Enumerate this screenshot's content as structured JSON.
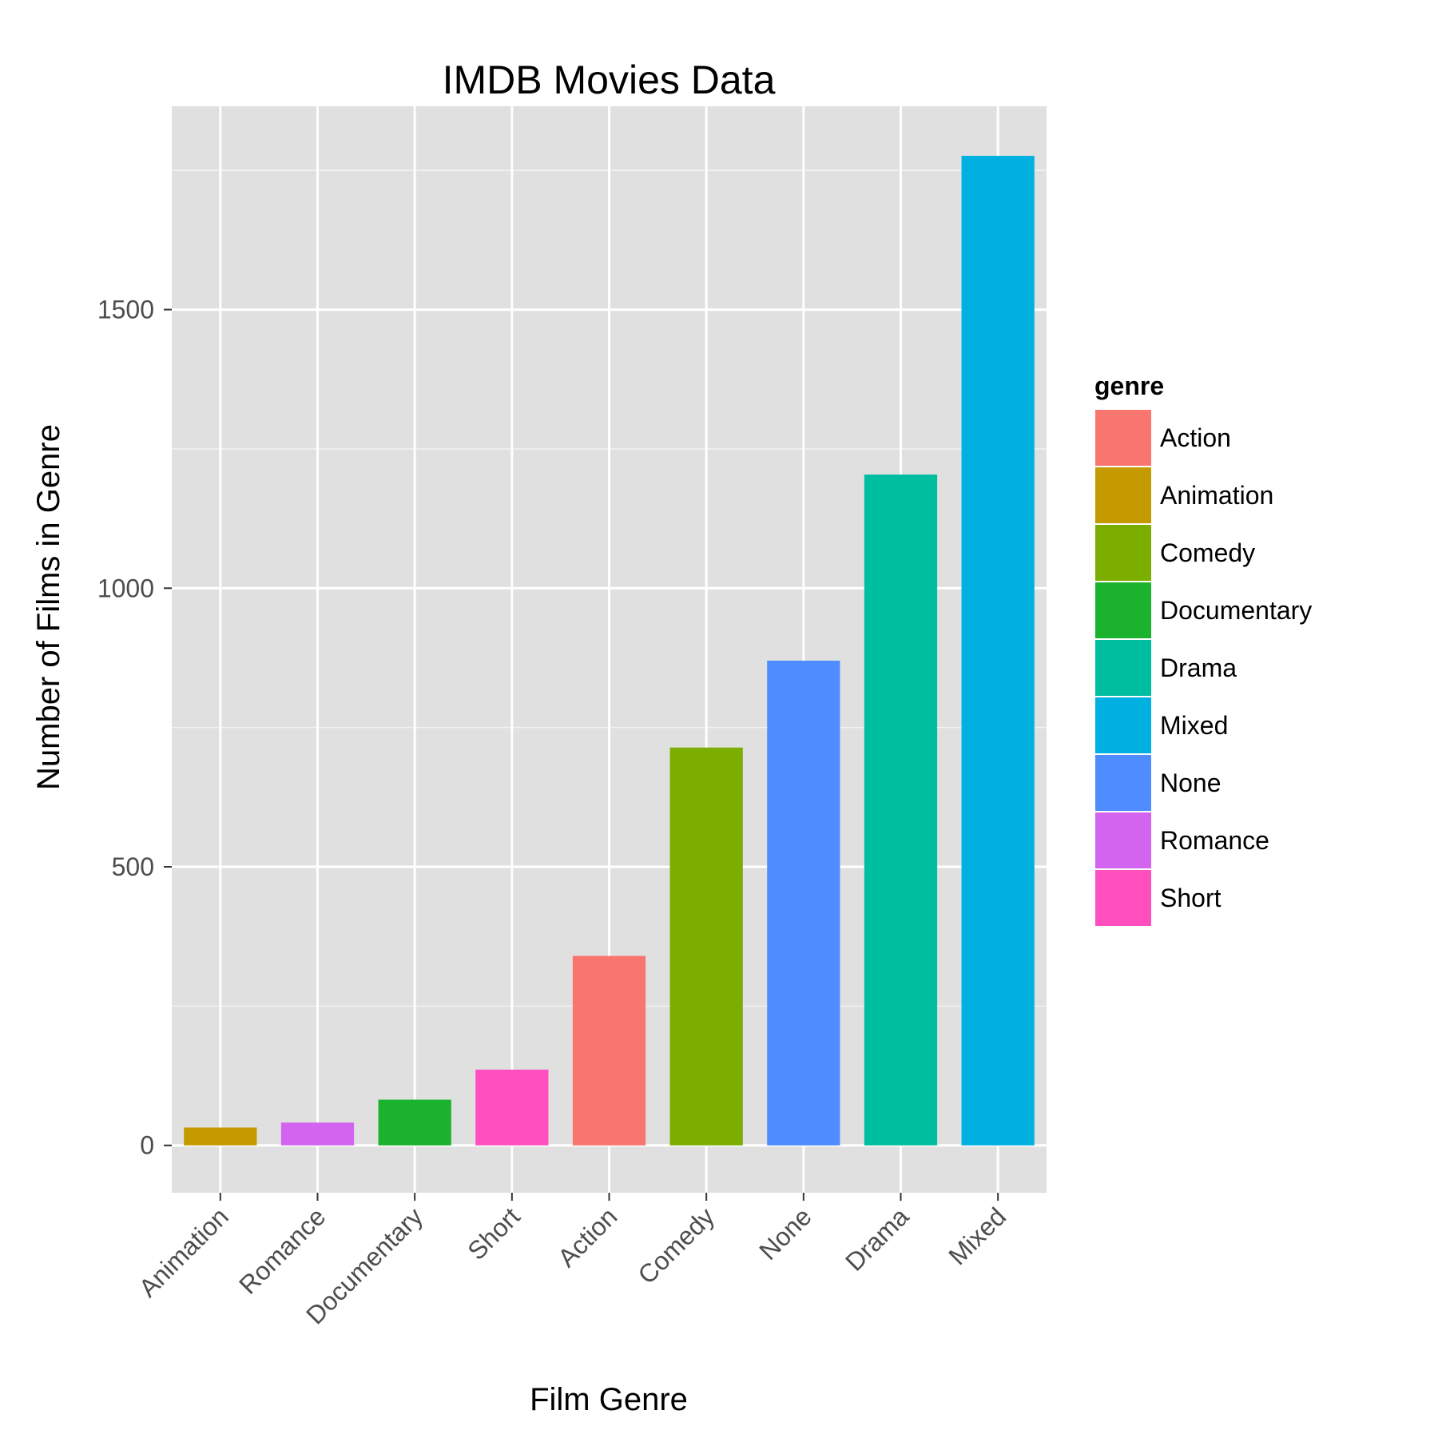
{
  "chart_data": {
    "type": "bar",
    "title": "IMDB Movies Data",
    "xlabel": "Film Genre",
    "ylabel": "Number of Films in Genre",
    "categories": [
      "Animation",
      "Romance",
      "Documentary",
      "Short",
      "Action",
      "Comedy",
      "None",
      "Drama",
      "Mixed"
    ],
    "values": [
      32,
      41,
      82,
      136,
      340,
      714,
      870,
      1204,
      1776
    ],
    "y_ticks": [
      0,
      500,
      1000,
      1500
    ],
    "y_tick_labels": [
      "0",
      "500",
      "1000",
      "1500"
    ],
    "ylim": [
      -85,
      1865
    ],
    "grid": true,
    "legend": {
      "title": "genre",
      "placement": "right",
      "entries": [
        {
          "label": "Action",
          "color": "#F8766D"
        },
        {
          "label": "Animation",
          "color": "#C49A00"
        },
        {
          "label": "Comedy",
          "color": "#7CAE00"
        },
        {
          "label": "Documentary",
          "color": "#1BB32D"
        },
        {
          "label": "Drama",
          "color": "#00BFA0"
        },
        {
          "label": "Mixed",
          "color": "#00B0E0"
        },
        {
          "label": "None",
          "color": "#4F8CFF"
        },
        {
          "label": "Romance",
          "color": "#D264F0"
        },
        {
          "label": "Short",
          "color": "#FF4FBF"
        }
      ]
    },
    "colors": {
      "panel_background": "#E0E0E0",
      "grid_major": "#FFFFFF",
      "grid_minor": "#F2F2F2",
      "tick_label": "#4d4d4d"
    }
  }
}
